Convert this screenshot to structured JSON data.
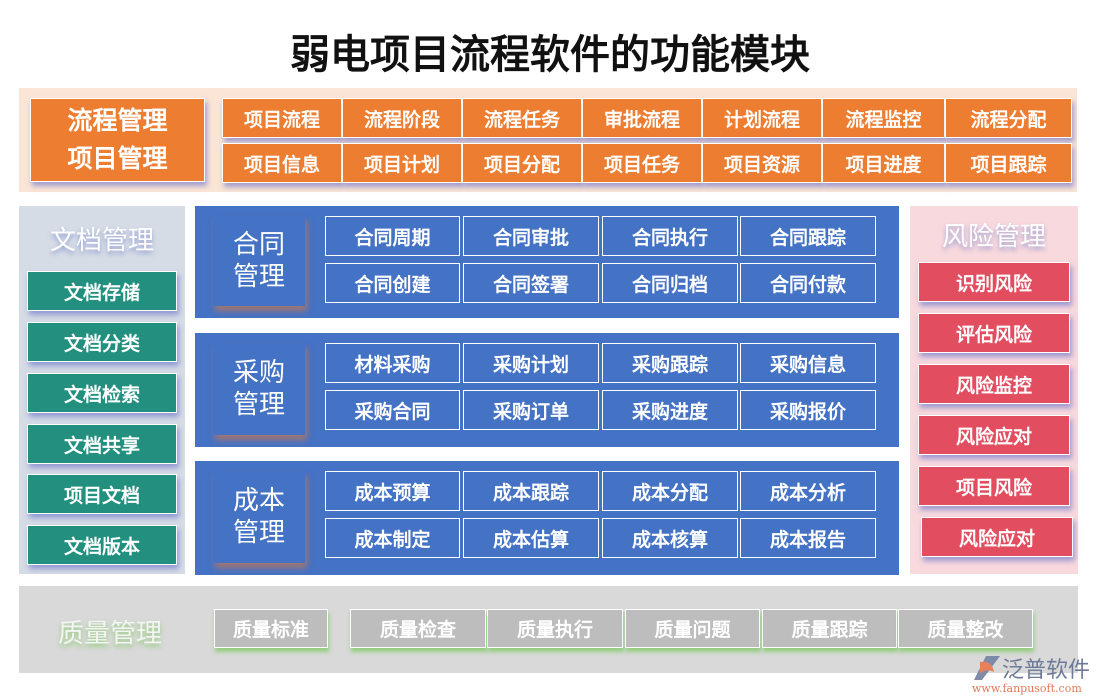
{
  "title": "弱电项目流程软件的功能模块",
  "colors": {
    "orange": "#ed7d31",
    "teal": "#23907f",
    "blue": "#4472c4",
    "red": "#e24d60",
    "gray": "#bdbdbd"
  },
  "process": {
    "label_lines": [
      "流程管理",
      "项目管理"
    ],
    "row1": [
      "项目流程",
      "流程阶段",
      "流程任务",
      "审批流程",
      "计划流程",
      "流程监控",
      "流程分配"
    ],
    "row2": [
      "项目信息",
      "项目计划",
      "项目分配",
      "项目任务",
      "项目资源",
      "项目进度",
      "项目跟踪"
    ]
  },
  "documents": {
    "title": "文档管理",
    "items": [
      "文档存储",
      "文档分类",
      "文档检索",
      "文档共享",
      "项目文档",
      "文档版本"
    ]
  },
  "blocks": [
    {
      "label_lines": [
        "合同",
        "管理"
      ],
      "items": [
        "合同周期",
        "合同审批",
        "合同执行",
        "合同跟踪",
        "合同创建",
        "合同签署",
        "合同归档",
        "合同付款"
      ]
    },
    {
      "label_lines": [
        "采购",
        "管理"
      ],
      "items": [
        "材料采购",
        "采购计划",
        "采购跟踪",
        "采购信息",
        "采购合同",
        "采购订单",
        "采购进度",
        "采购报价"
      ]
    },
    {
      "label_lines": [
        "成本",
        "管理"
      ],
      "items": [
        "成本预算",
        "成本跟踪",
        "成本分配",
        "成本分析",
        "成本制定",
        "成本估算",
        "成本核算",
        "成本报告"
      ]
    }
  ],
  "risk": {
    "title": "风险管理",
    "items": [
      "识别风险",
      "评估风险",
      "风险监控",
      "风险应对",
      "项目风险",
      "风险应对"
    ]
  },
  "quality": {
    "title": "质量管理",
    "items": [
      "质量标准",
      "质量检查",
      "质量执行",
      "质量问题",
      "质量跟踪",
      "质量整改"
    ]
  },
  "logo": {
    "name": "泛普软件",
    "url": "www.fanpusoft.com"
  }
}
